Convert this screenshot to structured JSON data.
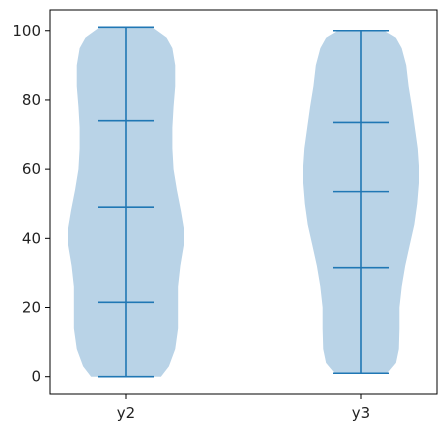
{
  "chart_data": {
    "type": "violin",
    "title": "",
    "xlabel": "",
    "ylabel": "",
    "ylim": [
      -5,
      106
    ],
    "y_ticks": [
      0,
      20,
      40,
      60,
      80,
      100
    ],
    "y_tick_labels": [
      "0",
      "20",
      "40",
      "60",
      "80",
      "100"
    ],
    "categories": [
      "y2",
      "y3"
    ],
    "grid": false,
    "colors": {
      "body": "#b9d3e7",
      "line": "#2077b4"
    },
    "violins": [
      {
        "name": "y2",
        "min": 0,
        "q1": 21.5,
        "median": 49,
        "q3": 74,
        "max": 101,
        "density": [
          [
            0,
            0.6
          ],
          [
            3,
            0.74
          ],
          [
            8,
            0.85
          ],
          [
            14,
            0.9
          ],
          [
            20,
            0.9
          ],
          [
            26,
            0.9
          ],
          [
            32,
            0.94
          ],
          [
            38,
            1.0
          ],
          [
            43,
            1.0
          ],
          [
            48,
            0.95
          ],
          [
            54,
            0.88
          ],
          [
            60,
            0.82
          ],
          [
            66,
            0.8
          ],
          [
            72,
            0.8
          ],
          [
            78,
            0.82
          ],
          [
            84,
            0.85
          ],
          [
            90,
            0.85
          ],
          [
            95,
            0.8
          ],
          [
            98,
            0.7
          ],
          [
            101,
            0.45
          ]
        ]
      },
      {
        "name": "y3",
        "min": 1,
        "q1": 31.5,
        "median": 53.5,
        "q3": 73.5,
        "max": 100,
        "density": [
          [
            1,
            0.45
          ],
          [
            4,
            0.6
          ],
          [
            8,
            0.65
          ],
          [
            14,
            0.66
          ],
          [
            20,
            0.66
          ],
          [
            26,
            0.7
          ],
          [
            32,
            0.76
          ],
          [
            38,
            0.84
          ],
          [
            44,
            0.92
          ],
          [
            50,
            0.97
          ],
          [
            56,
            1.0
          ],
          [
            61,
            1.0
          ],
          [
            66,
            0.98
          ],
          [
            72,
            0.93
          ],
          [
            78,
            0.88
          ],
          [
            84,
            0.82
          ],
          [
            90,
            0.78
          ],
          [
            95,
            0.7
          ],
          [
            98,
            0.6
          ],
          [
            100,
            0.4
          ]
        ]
      }
    ]
  }
}
